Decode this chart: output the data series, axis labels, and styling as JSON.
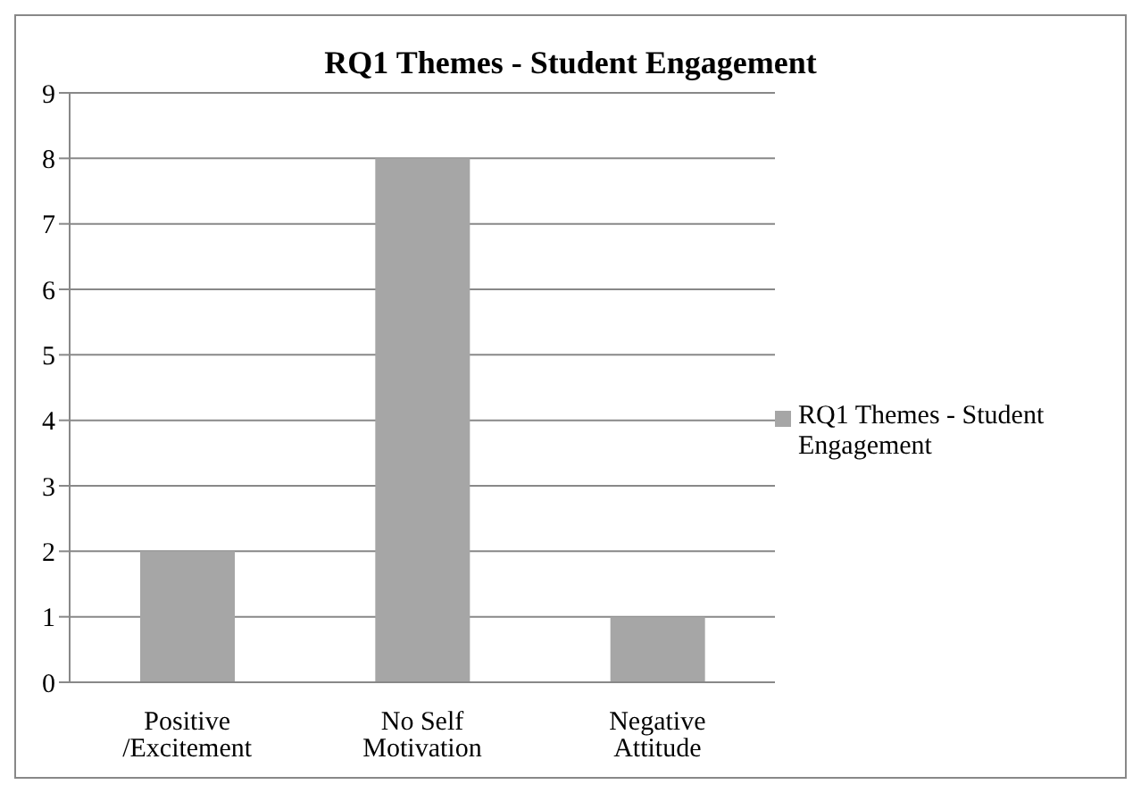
{
  "chart_data": {
    "type": "bar",
    "title": "RQ1 Themes - Student Engagement",
    "categories": [
      "Positive /Excitement",
      "No Self Motivation",
      "Negative Attitude"
    ],
    "series": [
      {
        "name": "RQ1 Themes - Student Engagement",
        "color": "#a6a6a6",
        "values": [
          2,
          8,
          1
        ]
      }
    ],
    "ylim": [
      0,
      9
    ],
    "yticks": [
      0,
      1,
      2,
      3,
      4,
      5,
      6,
      7,
      8,
      9
    ],
    "grid": "y",
    "legend": "right"
  }
}
